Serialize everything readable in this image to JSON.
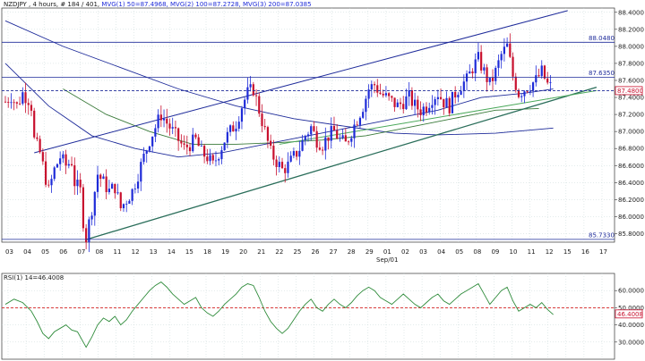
{
  "header": {
    "instrument": "NZDJPY , 4 hours, # 184 / 401,",
    "mvg1": "MVG(1) 50=87.4968,",
    "mvg2": "MVG(2) 100=87.2728,",
    "mvg3": "MVG(3) 200=87.0385"
  },
  "colors": {
    "background": "#ffffff",
    "grid": "#c7d7d7",
    "frame": "#333333",
    "bull_candle": "#1e2bd8",
    "bear_candle": "#c8102e",
    "mvg50": "#1e2b9a",
    "mvg100": "#3a7a3a",
    "mvg200": "#1e2b9a",
    "trendline": "#1e2b9a",
    "rsi_line": "#2e8b3a",
    "rsi_mid": "#d42020",
    "label_bg": "#ffffff"
  },
  "price_labels": {
    "resistance": "88.0480",
    "support_high": "87.6350",
    "current": "87.4800",
    "low": "85.7330"
  },
  "rsi": {
    "label": "RSI(1) 14=46.4008",
    "current": "46.4008",
    "ticks": [
      "60.0000",
      "50.0000",
      "40.0000",
      "30.0000"
    ]
  },
  "month_label": "Sep/01",
  "chart_data": [
    {
      "type": "candlestick",
      "y_ticks": [
        "88.4000",
        "88.2000",
        "88.0000",
        "87.8000",
        "87.6000",
        "87.4000",
        "87.2000",
        "87.0000",
        "86.8000",
        "86.6000",
        "86.4000",
        "86.2000",
        "86.0000",
        "85.8000"
      ],
      "x_ticks": [
        "03",
        "04",
        "05",
        "06",
        "07",
        "08",
        "11",
        "12",
        "13",
        "14",
        "15",
        "18",
        "19",
        "20",
        "21",
        "22",
        "25",
        "26",
        "27",
        "28",
        "29",
        "01",
        "02",
        "03",
        "04",
        "05",
        "08",
        "09",
        "10",
        "11",
        "12",
        "15",
        "16",
        "17"
      ],
      "ylim": [
        85.7,
        88.45
      ],
      "levels": [
        88.048,
        87.635,
        87.48,
        85.733
      ],
      "close_path": [
        [
          0,
          87.35
        ],
        [
          2,
          87.42
        ],
        [
          4,
          87.3
        ],
        [
          6,
          87.45
        ],
        [
          8,
          87.38
        ],
        [
          9,
          87.3
        ],
        [
          10,
          86.9
        ],
        [
          12,
          86.75
        ],
        [
          14,
          86.45
        ],
        [
          15,
          86.3
        ],
        [
          17,
          86.55
        ],
        [
          19,
          86.7
        ],
        [
          21,
          86.6
        ],
        [
          23,
          86.65
        ],
        [
          24,
          86.4
        ],
        [
          26,
          86.3
        ],
        [
          27,
          85.95
        ],
        [
          28,
          85.75
        ],
        [
          30,
          86.1
        ],
        [
          32,
          86.5
        ],
        [
          34,
          86.4
        ],
        [
          36,
          86.3
        ],
        [
          38,
          86.35
        ],
        [
          40,
          86.1
        ],
        [
          42,
          86.2
        ],
        [
          44,
          86.3
        ],
        [
          46,
          86.5
        ],
        [
          48,
          86.7
        ],
        [
          50,
          86.9
        ],
        [
          52,
          87.05
        ],
        [
          54,
          87.2
        ],
        [
          56,
          87.1
        ],
        [
          58,
          87.0
        ],
        [
          60,
          86.9
        ],
        [
          62,
          86.8
        ],
        [
          64,
          86.85
        ],
        [
          66,
          86.9
        ],
        [
          68,
          86.75
        ],
        [
          70,
          86.7
        ],
        [
          72,
          86.6
        ],
        [
          74,
          86.75
        ],
        [
          76,
          86.9
        ],
        [
          78,
          87.0
        ],
        [
          80,
          87.1
        ],
        [
          82,
          87.3
        ],
        [
          84,
          87.45
        ],
        [
          86,
          87.5
        ],
        [
          88,
          87.25
        ],
        [
          90,
          87.0
        ],
        [
          92,
          86.75
        ],
        [
          94,
          86.65
        ],
        [
          96,
          86.55
        ],
        [
          98,
          86.6
        ],
        [
          100,
          86.7
        ],
        [
          102,
          86.8
        ],
        [
          104,
          86.95
        ],
        [
          106,
          87.05
        ],
        [
          108,
          86.9
        ],
        [
          110,
          86.85
        ],
        [
          112,
          86.95
        ],
        [
          114,
          87.0
        ],
        [
          116,
          86.9
        ],
        [
          118,
          86.85
        ],
        [
          120,
          87.0
        ],
        [
          122,
          87.15
        ],
        [
          124,
          87.3
        ],
        [
          126,
          87.5
        ],
        [
          128,
          87.55
        ],
        [
          130,
          87.45
        ],
        [
          132,
          87.4
        ],
        [
          134,
          87.35
        ],
        [
          136,
          87.3
        ],
        [
          138,
          87.35
        ],
        [
          140,
          87.4
        ],
        [
          142,
          87.3
        ],
        [
          144,
          87.25
        ],
        [
          146,
          87.3
        ],
        [
          148,
          87.4
        ],
        [
          150,
          87.45
        ],
        [
          152,
          87.35
        ],
        [
          154,
          87.3
        ],
        [
          156,
          87.45
        ],
        [
          158,
          87.55
        ],
        [
          160,
          87.6
        ],
        [
          162,
          87.75
        ],
        [
          164,
          87.85
        ],
        [
          166,
          87.7
        ],
        [
          168,
          87.55
        ],
        [
          170,
          87.7
        ],
        [
          172,
          87.9
        ],
        [
          174,
          88.0
        ],
        [
          176,
          87.65
        ],
        [
          178,
          87.45
        ],
        [
          180,
          87.5
        ],
        [
          182,
          87.55
        ],
        [
          184,
          87.6
        ],
        [
          186,
          87.7
        ],
        [
          188,
          87.55
        ],
        [
          190,
          87.5
        ]
      ],
      "mvg50": [
        [
          0,
          87.8
        ],
        [
          15,
          87.3
        ],
        [
          30,
          86.95
        ],
        [
          45,
          86.8
        ],
        [
          60,
          86.7
        ],
        [
          75,
          86.75
        ],
        [
          90,
          86.85
        ],
        [
          105,
          86.95
        ],
        [
          120,
          87.05
        ],
        [
          135,
          87.15
        ],
        [
          150,
          87.25
        ],
        [
          165,
          87.4
        ],
        [
          180,
          87.45
        ],
        [
          190,
          87.5
        ]
      ],
      "mvg100": [
        [
          20,
          87.5
        ],
        [
          35,
          87.2
        ],
        [
          50,
          87.0
        ],
        [
          65,
          86.85
        ],
        [
          80,
          86.85
        ],
        [
          95,
          86.87
        ],
        [
          110,
          86.9
        ],
        [
          125,
          86.95
        ],
        [
          140,
          87.05
        ],
        [
          155,
          87.15
        ],
        [
          170,
          87.25
        ],
        [
          185,
          87.27
        ]
      ],
      "mvg200": [
        [
          0,
          88.3
        ],
        [
          20,
          88.0
        ],
        [
          40,
          87.75
        ],
        [
          60,
          87.5
        ],
        [
          80,
          87.3
        ],
        [
          100,
          87.15
        ],
        [
          120,
          87.05
        ],
        [
          135,
          86.98
        ],
        [
          150,
          86.96
        ],
        [
          170,
          86.98
        ],
        [
          190,
          87.04
        ]
      ],
      "trend_upper": [
        [
          10,
          86.75
        ],
        [
          195,
          88.42
        ]
      ],
      "trend_lower": [
        [
          28,
          85.73
        ],
        [
          205,
          87.52
        ]
      ],
      "candles_count": 190
    },
    {
      "type": "line",
      "title": "RSI(1) 14=46.4008",
      "ylim": [
        20,
        70
      ],
      "mid": 50,
      "values": [
        [
          0,
          52
        ],
        [
          3,
          55
        ],
        [
          6,
          53
        ],
        [
          9,
          48
        ],
        [
          11,
          42
        ],
        [
          13,
          35
        ],
        [
          15,
          32
        ],
        [
          17,
          36
        ],
        [
          19,
          38
        ],
        [
          21,
          40
        ],
        [
          23,
          37
        ],
        [
          25,
          36
        ],
        [
          27,
          30
        ],
        [
          28,
          27
        ],
        [
          30,
          33
        ],
        [
          32,
          40
        ],
        [
          34,
          44
        ],
        [
          36,
          42
        ],
        [
          38,
          45
        ],
        [
          40,
          40
        ],
        [
          42,
          43
        ],
        [
          44,
          48
        ],
        [
          46,
          52
        ],
        [
          48,
          56
        ],
        [
          50,
          60
        ],
        [
          52,
          63
        ],
        [
          54,
          65
        ],
        [
          56,
          62
        ],
        [
          58,
          58
        ],
        [
          60,
          55
        ],
        [
          62,
          52
        ],
        [
          64,
          54
        ],
        [
          66,
          56
        ],
        [
          68,
          50
        ],
        [
          70,
          47
        ],
        [
          72,
          45
        ],
        [
          74,
          48
        ],
        [
          76,
          52
        ],
        [
          78,
          55
        ],
        [
          80,
          58
        ],
        [
          82,
          62
        ],
        [
          84,
          64
        ],
        [
          86,
          63
        ],
        [
          88,
          56
        ],
        [
          90,
          48
        ],
        [
          92,
          42
        ],
        [
          94,
          38
        ],
        [
          96,
          35
        ],
        [
          98,
          38
        ],
        [
          100,
          43
        ],
        [
          102,
          48
        ],
        [
          104,
          52
        ],
        [
          106,
          55
        ],
        [
          108,
          50
        ],
        [
          110,
          48
        ],
        [
          112,
          52
        ],
        [
          114,
          55
        ],
        [
          116,
          52
        ],
        [
          118,
          50
        ],
        [
          120,
          53
        ],
        [
          122,
          57
        ],
        [
          124,
          60
        ],
        [
          126,
          62
        ],
        [
          128,
          60
        ],
        [
          130,
          56
        ],
        [
          132,
          54
        ],
        [
          134,
          52
        ],
        [
          136,
          55
        ],
        [
          138,
          58
        ],
        [
          140,
          55
        ],
        [
          142,
          52
        ],
        [
          144,
          50
        ],
        [
          146,
          53
        ],
        [
          148,
          56
        ],
        [
          150,
          58
        ],
        [
          152,
          54
        ],
        [
          154,
          52
        ],
        [
          156,
          55
        ],
        [
          158,
          58
        ],
        [
          160,
          60
        ],
        [
          162,
          62
        ],
        [
          164,
          64
        ],
        [
          166,
          58
        ],
        [
          168,
          52
        ],
        [
          170,
          56
        ],
        [
          172,
          60
        ],
        [
          174,
          62
        ],
        [
          176,
          54
        ],
        [
          178,
          48
        ],
        [
          180,
          50
        ],
        [
          182,
          52
        ],
        [
          184,
          50
        ],
        [
          186,
          53
        ],
        [
          188,
          49
        ],
        [
          190,
          46
        ]
      ]
    }
  ]
}
